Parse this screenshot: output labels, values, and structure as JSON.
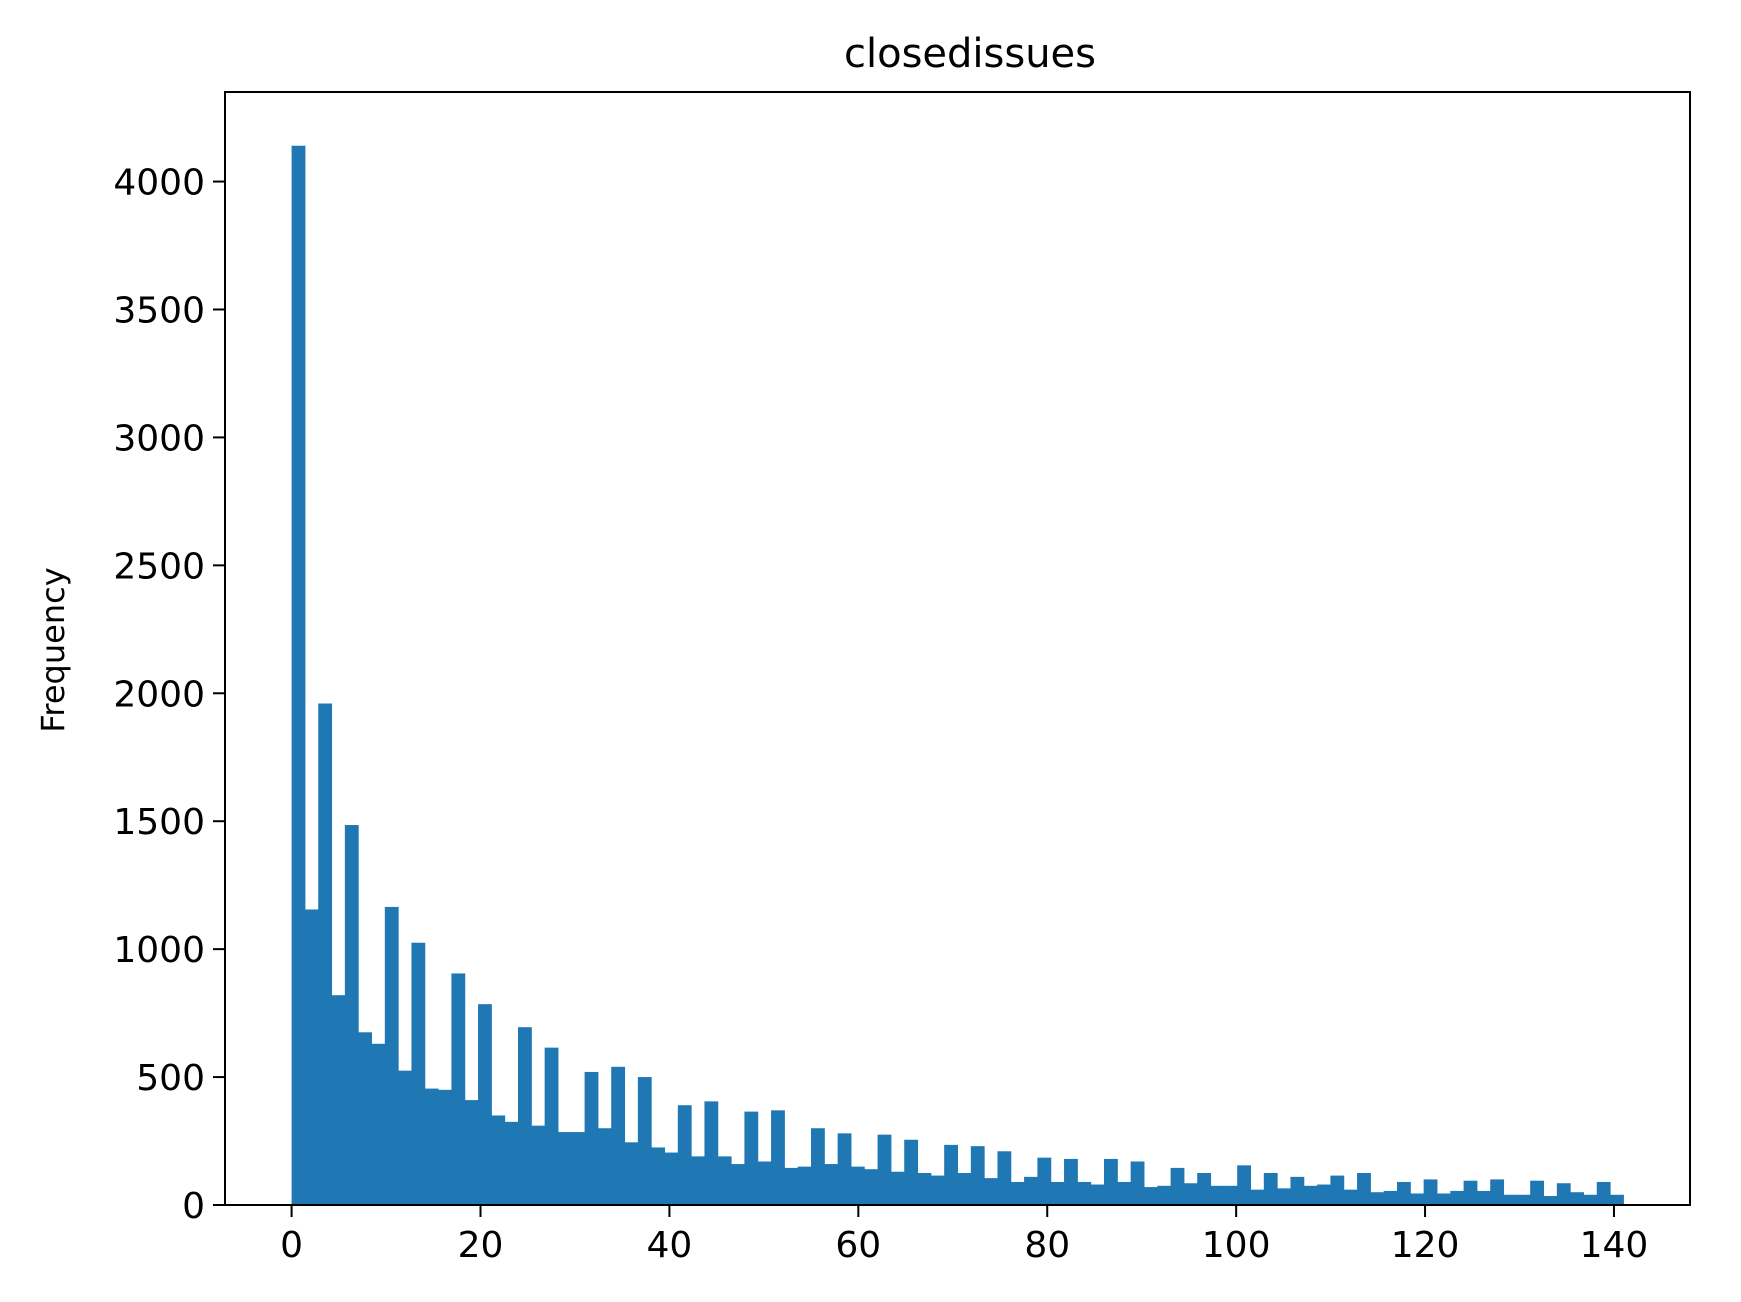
{
  "chart_data": {
    "type": "bar",
    "title": "closedissues",
    "xlabel": "",
    "ylabel": "Frequency",
    "xlim": [
      -7.05,
      148.05
    ],
    "ylim": [
      0,
      4350
    ],
    "grid": false,
    "bin_edges_start": 0,
    "bin_width": 1.41,
    "xticks": [
      0,
      20,
      40,
      60,
      80,
      100,
      120,
      140
    ],
    "yticks": [
      0,
      500,
      1000,
      1500,
      2000,
      2500,
      3000,
      3500,
      4000
    ],
    "color": "#1f77b4",
    "values": [
      4140,
      1155,
      1960,
      820,
      1485,
      675,
      630,
      1165,
      525,
      1025,
      455,
      450,
      905,
      410,
      785,
      350,
      325,
      695,
      310,
      615,
      285,
      285,
      520,
      300,
      540,
      245,
      500,
      225,
      205,
      390,
      190,
      405,
      190,
      160,
      365,
      170,
      370,
      145,
      150,
      300,
      160,
      280,
      150,
      140,
      275,
      130,
      255,
      125,
      115,
      235,
      125,
      230,
      105,
      210,
      90,
      110,
      185,
      90,
      180,
      90,
      80,
      180,
      90,
      170,
      70,
      75,
      145,
      85,
      125,
      75,
      75,
      155,
      60,
      125,
      65,
      110,
      75,
      80,
      115,
      60,
      125,
      50,
      55,
      90,
      45,
      100,
      45,
      55,
      95,
      55,
      100,
      40,
      40,
      95,
      35,
      85,
      50,
      40,
      90,
      40
    ]
  }
}
